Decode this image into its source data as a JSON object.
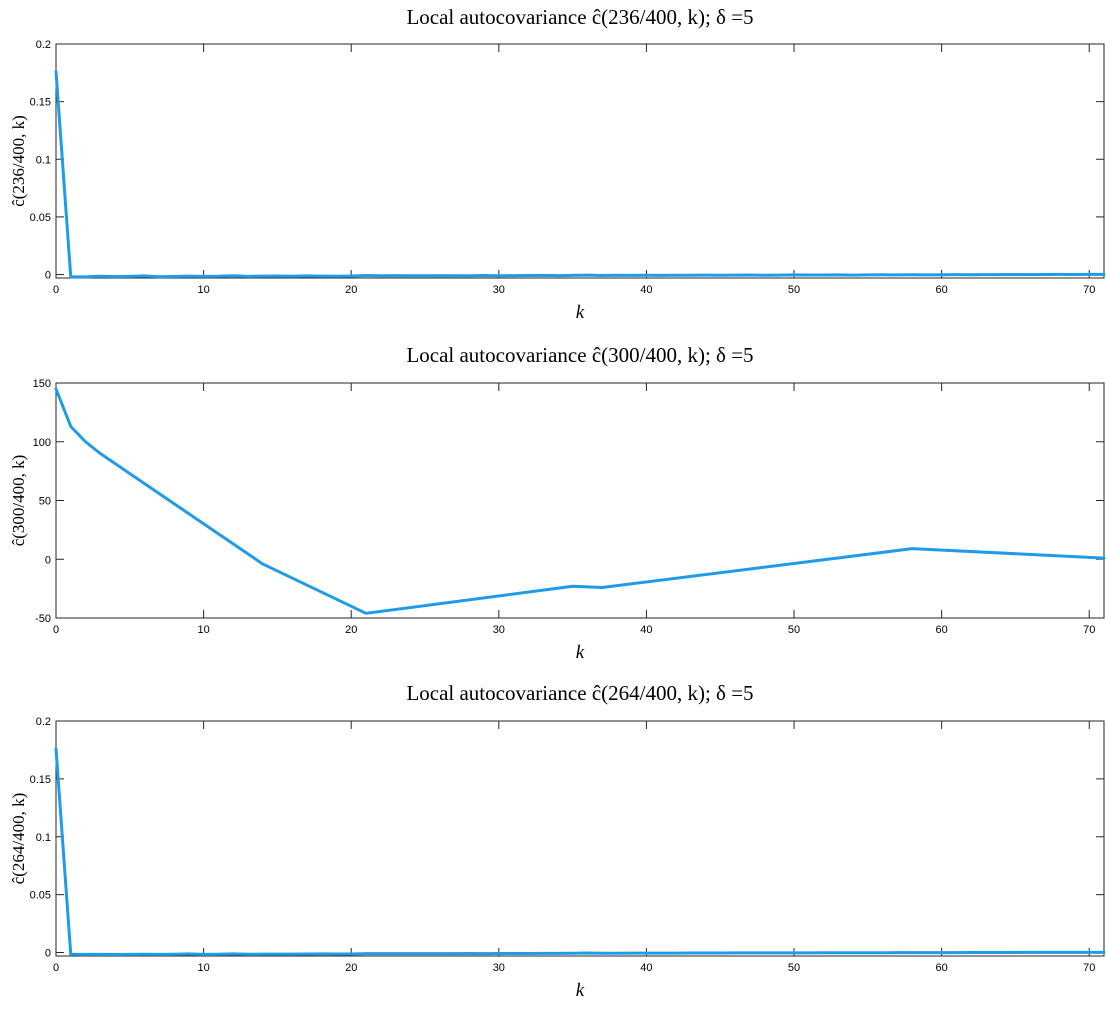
{
  "chart_data": [
    {
      "type": "line",
      "title": "Local autocovariance ĉ(236/400, k);   δ =5",
      "xlabel": "k",
      "ylabel": "ĉ(236/400, k)",
      "xlim": [
        0,
        71
      ],
      "ylim": [
        -0.003,
        0.2
      ],
      "xticks": [
        0,
        10,
        20,
        30,
        40,
        50,
        60,
        70
      ],
      "yticks": [
        0,
        0.05,
        0.1,
        0.15,
        0.2
      ],
      "ytick_labels": [
        "0",
        "0.05",
        "0.1",
        "0.15",
        "0.2"
      ],
      "color": "#1f9ce8",
      "grid": false,
      "series": [
        {
          "x": [
            0,
            1,
            2,
            3,
            4,
            5,
            6,
            7,
            8,
            9,
            10,
            11,
            12,
            13,
            14,
            15,
            16,
            17,
            18,
            19,
            20,
            21,
            22,
            23,
            24,
            25,
            26,
            27,
            28,
            29,
            30,
            31,
            32,
            33,
            34,
            35,
            36,
            37,
            38,
            39,
            40,
            41,
            42,
            43,
            44,
            45,
            46,
            47,
            48,
            49,
            50,
            51,
            52,
            53,
            54,
            55,
            56,
            57,
            58,
            59,
            60,
            61,
            62,
            63,
            64,
            65,
            66,
            67,
            68,
            69,
            70,
            71
          ],
          "values": [
            0.176,
            -0.002,
            -0.002,
            -0.0015,
            -0.0018,
            -0.0016,
            -0.0012,
            -0.0019,
            -0.0017,
            -0.0014,
            -0.0016,
            -0.0015,
            -0.0011,
            -0.0016,
            -0.0014,
            -0.0013,
            -0.0015,
            -0.0012,
            -0.0014,
            -0.0015,
            -0.0013,
            -0.0008,
            -0.001,
            -0.0009,
            -0.0011,
            -0.001,
            -0.0009,
            -0.0011,
            -0.001,
            -0.0008,
            -0.001,
            -0.0009,
            -0.0008,
            -0.0007,
            -0.0009,
            -0.0007,
            -0.0005,
            -0.0008,
            -0.0006,
            -0.0007,
            -0.0006,
            -0.0007,
            -0.0006,
            -0.0006,
            -0.0005,
            -0.0006,
            -0.0005,
            -0.0004,
            -0.0006,
            -0.0005,
            -0.0003,
            -0.0004,
            -0.0004,
            -0.0003,
            -0.0005,
            -0.0003,
            -0.0002,
            -0.0003,
            -0.0002,
            -0.0003,
            -0.0002,
            -0.0001,
            -0.0002,
            -0.0001,
            -0.0001,
            0.0,
            -0.0001,
            0.0,
            0.0001,
            0.0,
            0.0001,
            0.0001
          ]
        }
      ]
    },
    {
      "type": "line",
      "title": "Local autocovariance ĉ(300/400, k);   δ =5",
      "xlabel": "k",
      "ylabel": "ĉ(300/400, k)",
      "xlim": [
        0,
        71
      ],
      "ylim": [
        -50,
        150
      ],
      "xticks": [
        0,
        10,
        20,
        30,
        40,
        50,
        60,
        70
      ],
      "yticks": [
        -50,
        0,
        50,
        100,
        150
      ],
      "ytick_labels": [
        "-50",
        "0",
        "50",
        "100",
        "150"
      ],
      "color": "#1f9ce8",
      "grid": false,
      "series": [
        {
          "x": [
            0,
            1,
            2,
            3,
            14,
            21,
            35,
            37,
            58,
            71
          ],
          "values": [
            145,
            113,
            100,
            90,
            -4,
            -46,
            -23,
            -24,
            9,
            1
          ]
        }
      ]
    },
    {
      "type": "line",
      "title": "Local autocovariance ĉ(264/400, k);   δ =5",
      "xlabel": "k",
      "ylabel": "ĉ(264/400, k)",
      "xlim": [
        0,
        71
      ],
      "ylim": [
        -0.003,
        0.2
      ],
      "xticks": [
        0,
        10,
        20,
        30,
        40,
        50,
        60,
        70
      ],
      "yticks": [
        0,
        0.05,
        0.1,
        0.15,
        0.2
      ],
      "ytick_labels": [
        "0",
        "0.05",
        "0.1",
        "0.15",
        "0.2"
      ],
      "color": "#1f9ce8",
      "grid": false,
      "series": [
        {
          "x": [
            0,
            1,
            2,
            3,
            4,
            5,
            6,
            7,
            8,
            9,
            10,
            11,
            12,
            13,
            14,
            15,
            16,
            17,
            18,
            19,
            20,
            21,
            22,
            23,
            24,
            25,
            26,
            27,
            28,
            29,
            30,
            31,
            32,
            33,
            34,
            35,
            36,
            37,
            38,
            39,
            40,
            41,
            42,
            43,
            44,
            45,
            46,
            47,
            48,
            49,
            50,
            51,
            52,
            53,
            54,
            55,
            56,
            57,
            58,
            59,
            60,
            61,
            62,
            63,
            64,
            65,
            66,
            67,
            68,
            69,
            70,
            71
          ],
          "values": [
            0.176,
            -0.0015,
            -0.0016,
            -0.0016,
            -0.0017,
            -0.0016,
            -0.0015,
            -0.0016,
            -0.0015,
            -0.0012,
            -0.0016,
            -0.0015,
            -0.0012,
            -0.0015,
            -0.0014,
            -0.0014,
            -0.0014,
            -0.0013,
            -0.0012,
            -0.0013,
            -0.0013,
            -0.001,
            -0.001,
            -0.001,
            -0.0009,
            -0.0009,
            -0.0009,
            -0.001,
            -0.0008,
            -0.0009,
            -0.0008,
            -0.0008,
            -0.0008,
            -0.0007,
            -0.0007,
            -0.0006,
            -0.0004,
            -0.0006,
            -0.0006,
            -0.0005,
            -0.0005,
            -0.0005,
            -0.0005,
            -0.0004,
            -0.0004,
            -0.0004,
            -0.0003,
            -0.0003,
            -0.0003,
            -0.0003,
            -0.0003,
            -0.0003,
            -0.0002,
            -0.0002,
            -0.0002,
            -0.0002,
            -0.0002,
            -0.0001,
            -0.0001,
            -0.0001,
            -0.0001,
            -0.0001,
            0.0,
            0.0,
            0.0,
            0.0,
            0.0001,
            0.0001,
            0.0001,
            0.0001,
            0.0001,
            0.0001
          ]
        }
      ]
    }
  ]
}
